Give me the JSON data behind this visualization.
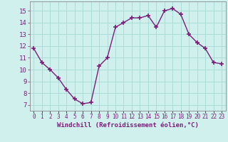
{
  "x": [
    0,
    1,
    2,
    3,
    4,
    5,
    6,
    7,
    8,
    9,
    10,
    11,
    12,
    13,
    14,
    15,
    16,
    17,
    18,
    19,
    20,
    21,
    22,
    23
  ],
  "y": [
    11.8,
    10.6,
    10.0,
    9.3,
    8.3,
    7.5,
    7.1,
    7.2,
    10.3,
    11.0,
    13.6,
    14.0,
    14.4,
    14.4,
    14.6,
    13.6,
    15.0,
    15.2,
    14.7,
    13.0,
    12.3,
    11.8,
    10.6,
    10.5
  ],
  "line_color": "#7B1E7B",
  "marker": "+",
  "markersize": 4,
  "markeredgewidth": 1.2,
  "linewidth": 1.0,
  "xlabel": "Windchill (Refroidissement éolien,°C)",
  "xlabel_fontsize": 6.5,
  "bg_color": "#cff0ec",
  "grid_color": "#aaddd8",
  "ylim": [
    6.5,
    15.8
  ],
  "xlim": [
    -0.5,
    23.5
  ],
  "yticks": [
    7,
    8,
    9,
    10,
    11,
    12,
    13,
    14,
    15
  ],
  "xtick_labels": [
    "0",
    "1",
    "2",
    "3",
    "4",
    "5",
    "6",
    "7",
    "8",
    "9",
    "10",
    "11",
    "12",
    "13",
    "14",
    "15",
    "16",
    "17",
    "18",
    "19",
    "20",
    "21",
    "22",
    "23"
  ],
  "tick_fontsize": 5.5,
  "ytick_fontsize": 6.5
}
